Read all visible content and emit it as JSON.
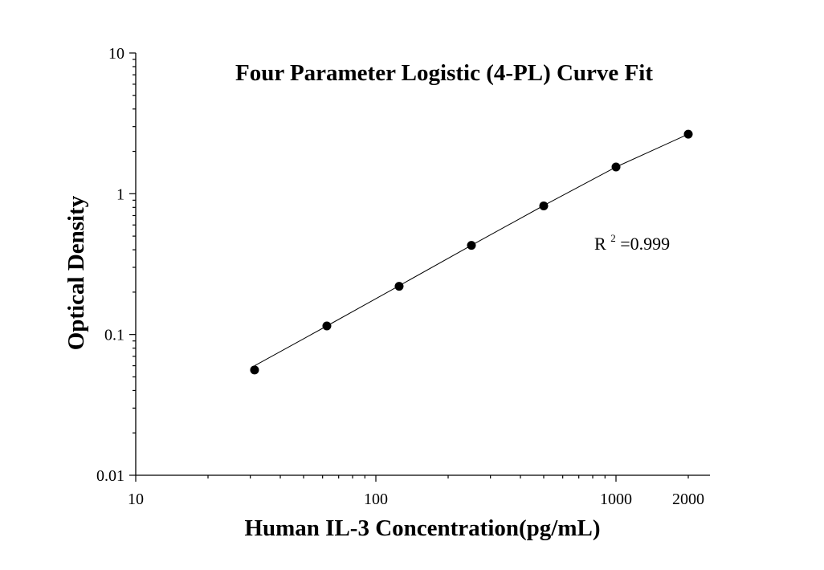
{
  "chart_data": {
    "type": "scatter",
    "title": "Four Parameter Logistic (4-PL) Curve Fit",
    "xlabel": "Human IL-3 Concentration(pg/mL)",
    "ylabel": "Optical Density",
    "x_scale": "log",
    "y_scale": "log",
    "xlim": [
      10,
      2900
    ],
    "ylim": [
      0.01,
      10
    ],
    "x_ticks": [
      {
        "value": 10,
        "label": "10"
      },
      {
        "value": 100,
        "label": "100"
      },
      {
        "value": 1000,
        "label": "1000"
      },
      {
        "value": 2000,
        "label": "2000"
      }
    ],
    "y_ticks": [
      {
        "value": 0.01,
        "label": "0.01"
      },
      {
        "value": 0.1,
        "label": "0.1"
      },
      {
        "value": 1,
        "label": "1"
      },
      {
        "value": 10,
        "label": "10"
      }
    ],
    "grid": false,
    "points": {
      "x": [
        31.25,
        62.5,
        125,
        250,
        500,
        1000,
        2000
      ],
      "y": [
        0.056,
        0.115,
        0.22,
        0.43,
        0.82,
        1.55,
        2.65
      ]
    },
    "fit": {
      "model": "4-PL",
      "x": [
        31.25,
        62.5,
        125,
        250,
        500,
        1000,
        1500,
        2000
      ],
      "y": [
        0.06,
        0.115,
        0.222,
        0.43,
        0.825,
        1.55,
        2.12,
        2.65
      ]
    },
    "annotation": {
      "prefix": "R",
      "superscript": "2",
      "suffix": "=0.999"
    }
  }
}
